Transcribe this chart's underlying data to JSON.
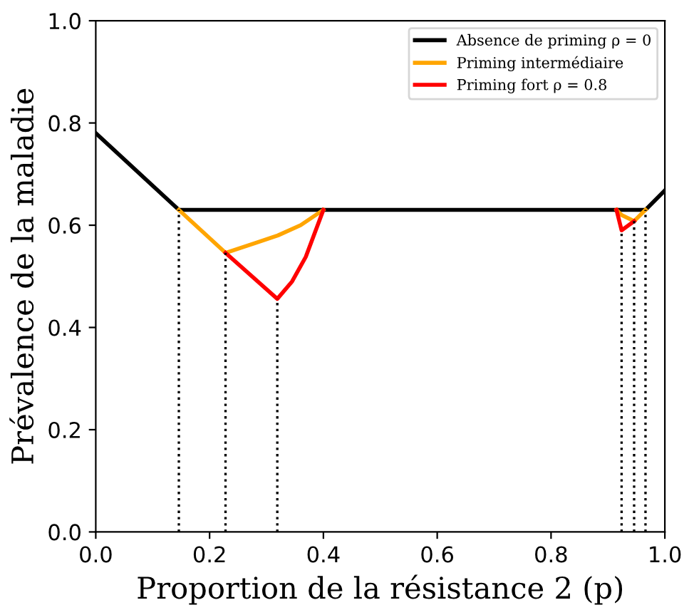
{
  "chart_data": {
    "type": "line",
    "xlabel": "Proportion de la résistance 2 (p)",
    "ylabel": "Prévalence de la maladie",
    "xlim": [
      0,
      1
    ],
    "ylim": [
      0,
      1
    ],
    "xticks": [
      {
        "value": 0,
        "label": "0.0"
      },
      0.2,
      0.4,
      0.6,
      0.8,
      {
        "value": 1,
        "label": "1.0"
      }
    ],
    "yticks": [
      {
        "value": 0,
        "label": "0.0"
      },
      0.2,
      0.4,
      0.6,
      0.8,
      {
        "value": 1,
        "label": "1.0"
      }
    ],
    "grid": false,
    "legend": "top right",
    "marker": "none",
    "series": [
      {
        "name": "Absence de priming ρ = 0",
        "color": "#000000",
        "x": [
          0,
          0.146,
          0.966,
          1
        ],
        "values": [
          0.78,
          0.63,
          0.63,
          0.668
        ]
      },
      {
        "name": "Priming intermédiaire",
        "color": "#ffa500",
        "x": [
          0.146,
          0.228,
          0.28,
          0.32,
          0.36,
          0.4,
          null,
          0.915,
          0.924,
          0.946,
          0.966
        ],
        "values": [
          0.63,
          0.546,
          0.565,
          0.58,
          0.6,
          0.63,
          null,
          0.63,
          0.62,
          0.608,
          0.63
        ]
      },
      {
        "name": "Priming fort ρ = 0.8",
        "color": "#ff0000",
        "x": [
          0.228,
          0.319,
          0.345,
          0.369,
          0.4,
          null,
          0.915,
          0.924,
          0.946
        ],
        "values": [
          0.546,
          0.456,
          0.49,
          0.538,
          0.63,
          null,
          0.63,
          0.59,
          0.608
        ]
      },
      {
        "color": "#000000",
        "line_style": "dotted",
        "x": [
          0.146,
          0.146,
          null,
          0.228,
          0.228,
          null,
          0.319,
          0.319,
          null,
          0.924,
          0.924,
          null,
          0.946,
          0.946,
          null,
          0.966,
          0.966
        ],
        "values": [
          0,
          0.63,
          null,
          0,
          0.546,
          null,
          0,
          0.456,
          null,
          0,
          0.59,
          null,
          0,
          0.608,
          null,
          0,
          0.63
        ]
      }
    ]
  }
}
